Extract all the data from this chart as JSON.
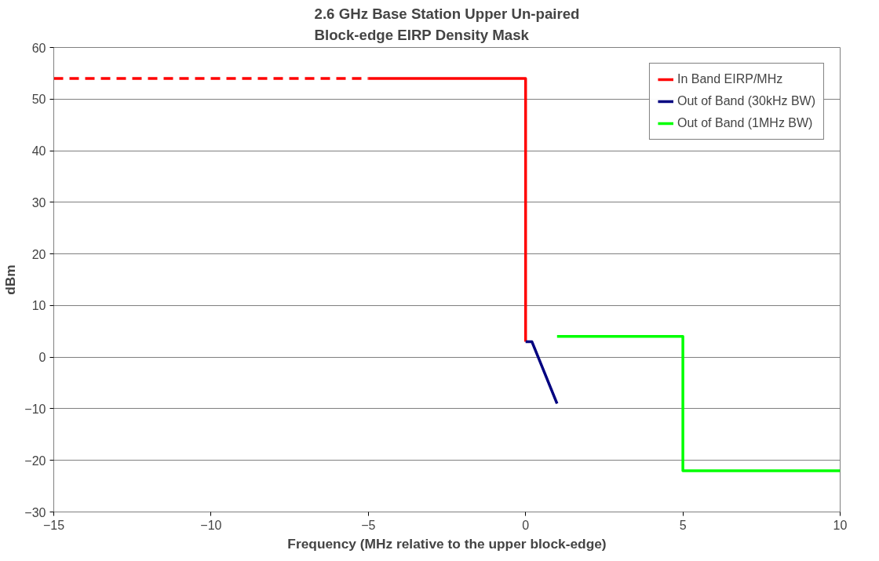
{
  "chart_data": {
    "type": "line",
    "title": "2.6 GHz Base Station Upper Un-paired\nBlock-edge EIRP Density Mask",
    "xlabel": "Frequency (MHz relative to the upper block-edge)",
    "ylabel": "dBm",
    "series": [
      {
        "name": "In Band EIRP/MHz",
        "color": "#ff0000",
        "x": [
          -5,
          0,
          0
        ],
        "values": [
          54,
          54,
          3
        ],
        "line_style": "solid"
      },
      {
        "color": "#ff0000",
        "x": [
          -15,
          -5
        ],
        "values": [
          54,
          54
        ],
        "line_style": "dashed"
      },
      {
        "name": "Out of Band (30kHz BW)",
        "color": "#000080",
        "x": [
          0,
          0.2,
          1
        ],
        "values": [
          3,
          3,
          -9
        ],
        "line_style": "solid"
      },
      {
        "name": "Out of Band (1MHz BW)",
        "color": "#00ff00",
        "x": [
          1,
          5,
          5,
          10
        ],
        "values": [
          4,
          4,
          -22,
          -22
        ],
        "line_style": "solid"
      }
    ],
    "xlim": [
      -15,
      10
    ],
    "xticks": [
      -15,
      -10,
      -5,
      0,
      5,
      10
    ],
    "ylim": [
      -30,
      60
    ],
    "yticks": [
      -30,
      -20,
      -10,
      0,
      10,
      20,
      30,
      40,
      50,
      60
    ],
    "grid": "y",
    "legend": "top right",
    "marker": "none"
  }
}
